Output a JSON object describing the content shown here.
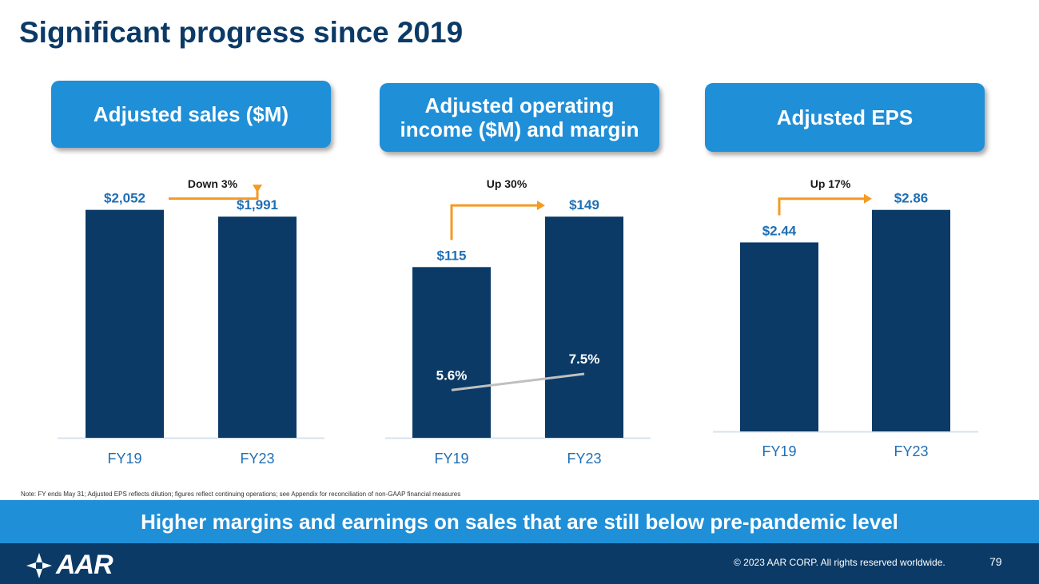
{
  "slide": {
    "title": "Significant progress since 2019",
    "note": "Note: FY ends May 31; Adjusted EPS reflects dilution; figures reflect continuing operations; see Appendix for reconciliation of non-GAAP financial measures",
    "banner": "Higher margins and earnings on sales that are still below pre-pandemic level",
    "footer": {
      "logo_text": "AAR",
      "copyright": "© 2023 AAR CORP. All rights reserved worldwide.",
      "page_number": "79"
    },
    "colors": {
      "title": "#0b3a66",
      "accent_blue": "#1f8fd8",
      "bar_navy": "#0b3a66",
      "value_label": "#1f6fb5",
      "arrow_orange": "#f59a23",
      "margin_line": "#c0c0c0",
      "axis_line": "#d6e3ef"
    }
  },
  "chart_data": [
    {
      "type": "bar",
      "title": "Adjusted sales ($M)",
      "categories": [
        "FY19",
        "FY23"
      ],
      "values": [
        2052,
        1991
      ],
      "value_labels": [
        "$2,052",
        "$1,991"
      ],
      "change_label": "Down 3%",
      "ylim": [
        0,
        2100
      ]
    },
    {
      "type": "bar",
      "title": "Adjusted operating income ($M) and margin",
      "categories": [
        "FY19",
        "FY23"
      ],
      "values": [
        115,
        149
      ],
      "value_labels": [
        "$115",
        "$149"
      ],
      "change_label": "Up 30%",
      "ylim": [
        0,
        155
      ],
      "margin": {
        "values": [
          5.6,
          7.5
        ],
        "labels": [
          "5.6%",
          "7.5%"
        ],
        "ylim": [
          0,
          27
        ]
      }
    },
    {
      "type": "bar",
      "title": "Adjusted EPS",
      "categories": [
        "FY19",
        "FY23"
      ],
      "values": [
        2.44,
        2.86
      ],
      "value_labels": [
        "$2.44",
        "$2.86"
      ],
      "change_label": "Up 17%",
      "ylim": [
        0,
        2.95
      ]
    }
  ]
}
